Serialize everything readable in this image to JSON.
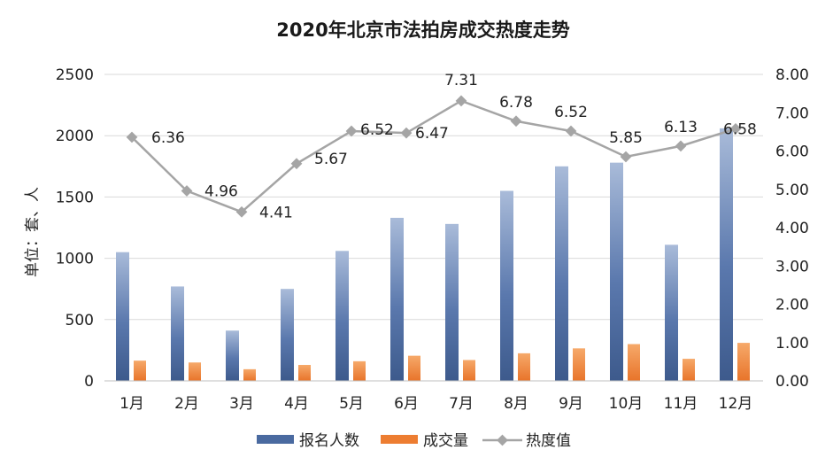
{
  "chart_data": {
    "type": "bar+line",
    "title": "2020年北京市法拍房成交热度走势",
    "ylabel": "单位：套、人",
    "categories": [
      "1月",
      "2月",
      "3月",
      "4月",
      "5月",
      "6月",
      "7月",
      "8月",
      "9月",
      "10月",
      "11月",
      "12月"
    ],
    "series": [
      {
        "name": "报名人数",
        "type": "bar",
        "axis": "left",
        "color": "#4a6aa0",
        "values": [
          1050,
          770,
          410,
          750,
          1060,
          1330,
          1280,
          1550,
          1750,
          1780,
          1110,
          2060
        ]
      },
      {
        "name": "成交量",
        "type": "bar",
        "axis": "left",
        "color": "#ed7d31",
        "values": [
          165,
          150,
          95,
          130,
          160,
          205,
          170,
          225,
          265,
          300,
          180,
          310
        ]
      },
      {
        "name": "热度值",
        "type": "line",
        "axis": "right",
        "color": "#a5a5a5",
        "values": [
          6.36,
          4.96,
          4.41,
          5.67,
          6.52,
          6.47,
          7.31,
          6.78,
          6.52,
          5.85,
          6.13,
          6.58
        ],
        "labels": [
          "6.36",
          "4.96",
          "4.41",
          "5.67",
          "6.52",
          "6.47",
          "7.31",
          "6.78",
          "6.52",
          "5.85",
          "6.13",
          "6.58"
        ]
      }
    ],
    "y_left": {
      "ylim": [
        0,
        2500
      ],
      "ticks": [
        "0",
        "500",
        "1000",
        "1500",
        "2000",
        "2500"
      ]
    },
    "y_right": {
      "ylim": [
        0,
        8
      ],
      "ticks": [
        "0.00",
        "1.00",
        "2.00",
        "3.00",
        "4.00",
        "5.00",
        "6.00",
        "7.00",
        "8.00"
      ]
    },
    "grid": true,
    "legend_position": "bottom"
  }
}
